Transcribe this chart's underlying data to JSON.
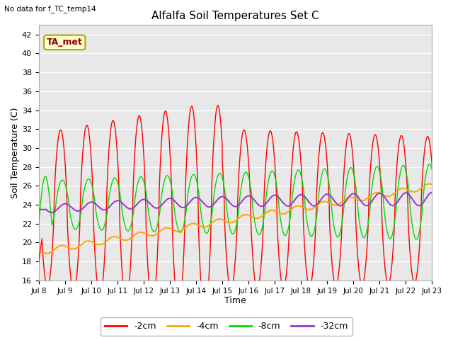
{
  "title": "Alfalfa Soil Temperatures Set C",
  "xlabel": "Time",
  "ylabel": "Soil Temperature (C)",
  "no_data_text": "No data for f_TC_temp14",
  "ta_met_label": "TA_met",
  "ylim": [
    16,
    43
  ],
  "yticks": [
    16,
    18,
    20,
    22,
    24,
    26,
    28,
    30,
    32,
    34,
    36,
    38,
    40,
    42
  ],
  "x_tick_labels": [
    "Jul 8",
    "Jul 9",
    "Jul 10",
    "Jul 11",
    "Jul 12",
    "Jul 13",
    "Jul 14",
    "Jul 15",
    "Jul 16",
    "Jul 17",
    "Jul 18",
    "Jul 19",
    "Jul 20",
    "Jul 21",
    "Jul 22",
    "Jul 23"
  ],
  "colors": {
    "2cm": "#ff0000",
    "4cm": "#ffa500",
    "8cm": "#00dd00",
    "32cm": "#9933cc"
  },
  "bg_color": "#e8e8e8",
  "grid_color": "#ffffff",
  "legend_entries": [
    "-2cm",
    "-4cm",
    "-8cm",
    "-32cm"
  ],
  "fig_width": 6.4,
  "fig_height": 4.8,
  "dpi": 100
}
